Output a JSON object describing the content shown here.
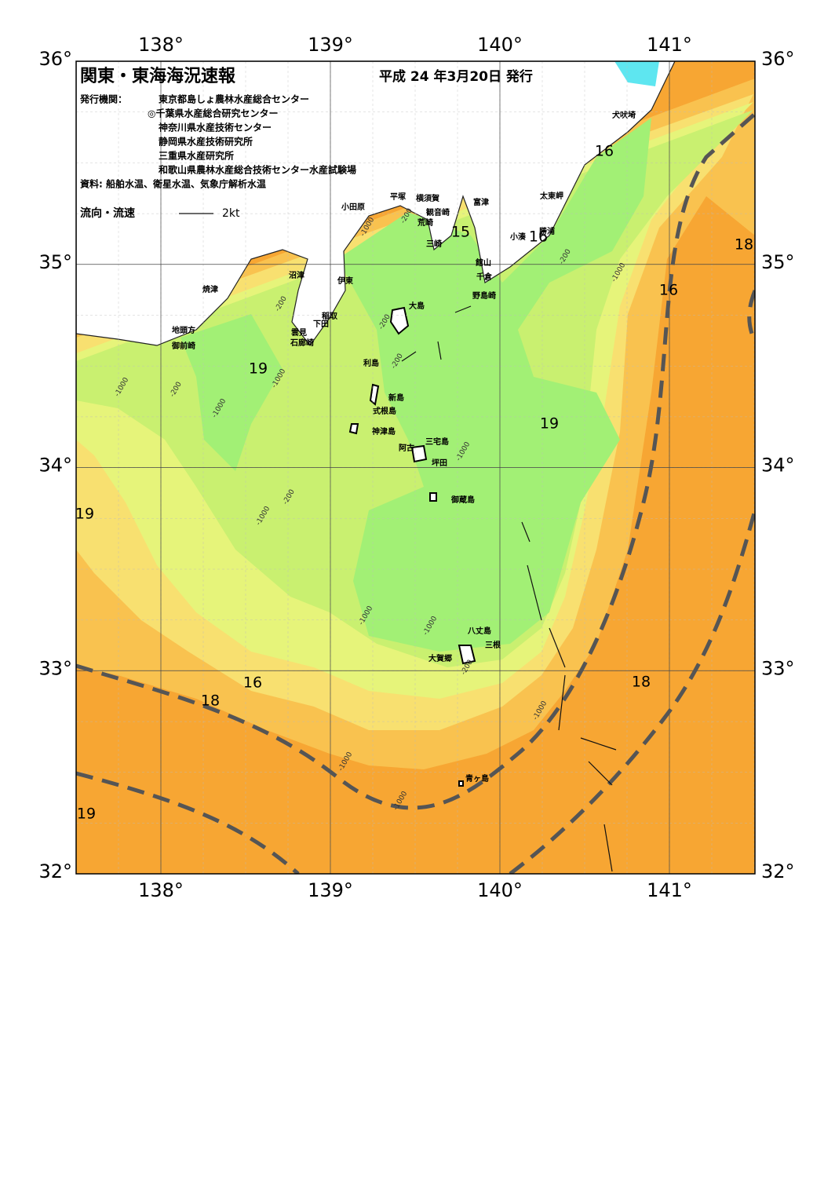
{
  "header": {
    "title": "関東・東海海況速報",
    "date": "平成 24 年3月20日 発行",
    "agencies_label": "発行機関：",
    "agencies": [
      "東京都島しょ農林水産総合センター",
      "◎千葉県水産総合研究センター",
      "神奈川県水産技術センター",
      "静岡県水産技術研究所",
      "三重県水産研究所",
      "和歌山県農林水産総合技術センター水産試験場"
    ],
    "source": "資料: 船舶水温、衛星水温、気象庁解析水温"
  },
  "legend": {
    "label": "流向・流速",
    "speed": "2kt"
  },
  "map": {
    "lon_ticks": [
      {
        "value": 138,
        "label": "138°"
      },
      {
        "value": 139,
        "label": "139°"
      },
      {
        "value": 140,
        "label": "140°"
      },
      {
        "value": 141,
        "label": "141°"
      }
    ],
    "lat_ticks": [
      {
        "value": 32,
        "label": "32°"
      },
      {
        "value": 33,
        "label": "33°"
      },
      {
        "value": 34,
        "label": "34°"
      },
      {
        "value": 35,
        "label": "35°"
      },
      {
        "value": 36,
        "label": "36°"
      }
    ],
    "places": [
      "犬吠埼",
      "太東岬",
      "勝浦",
      "小湊",
      "富津",
      "横須賀",
      "平塚",
      "小田原",
      "観音崎",
      "荒崎",
      "三崎",
      "館山",
      "千倉",
      "野島崎",
      "沼津",
      "伊東",
      "焼津",
      "稲取",
      "下田",
      "雲見",
      "石廊崎",
      "地頭方",
      "御前崎",
      "大島",
      "利島",
      "新島",
      "式根島",
      "神津島",
      "三宅島",
      "阿古",
      "坪田",
      "御蔵島",
      "八丈島",
      "三根",
      "大賀郷",
      "青ヶ島"
    ],
    "isotherm_labels": [
      16,
      15,
      16,
      18,
      19,
      16,
      16,
      18,
      18,
      19,
      19,
      19
    ],
    "depth_labels": [
      -200,
      -1000,
      -200,
      -1000,
      -200,
      -200,
      -200,
      -1000,
      -200,
      -1000,
      -1000,
      -200,
      -1000,
      -1000,
      -1000,
      -1000,
      -200,
      -1000,
      -1000,
      -1000
    ]
  }
}
